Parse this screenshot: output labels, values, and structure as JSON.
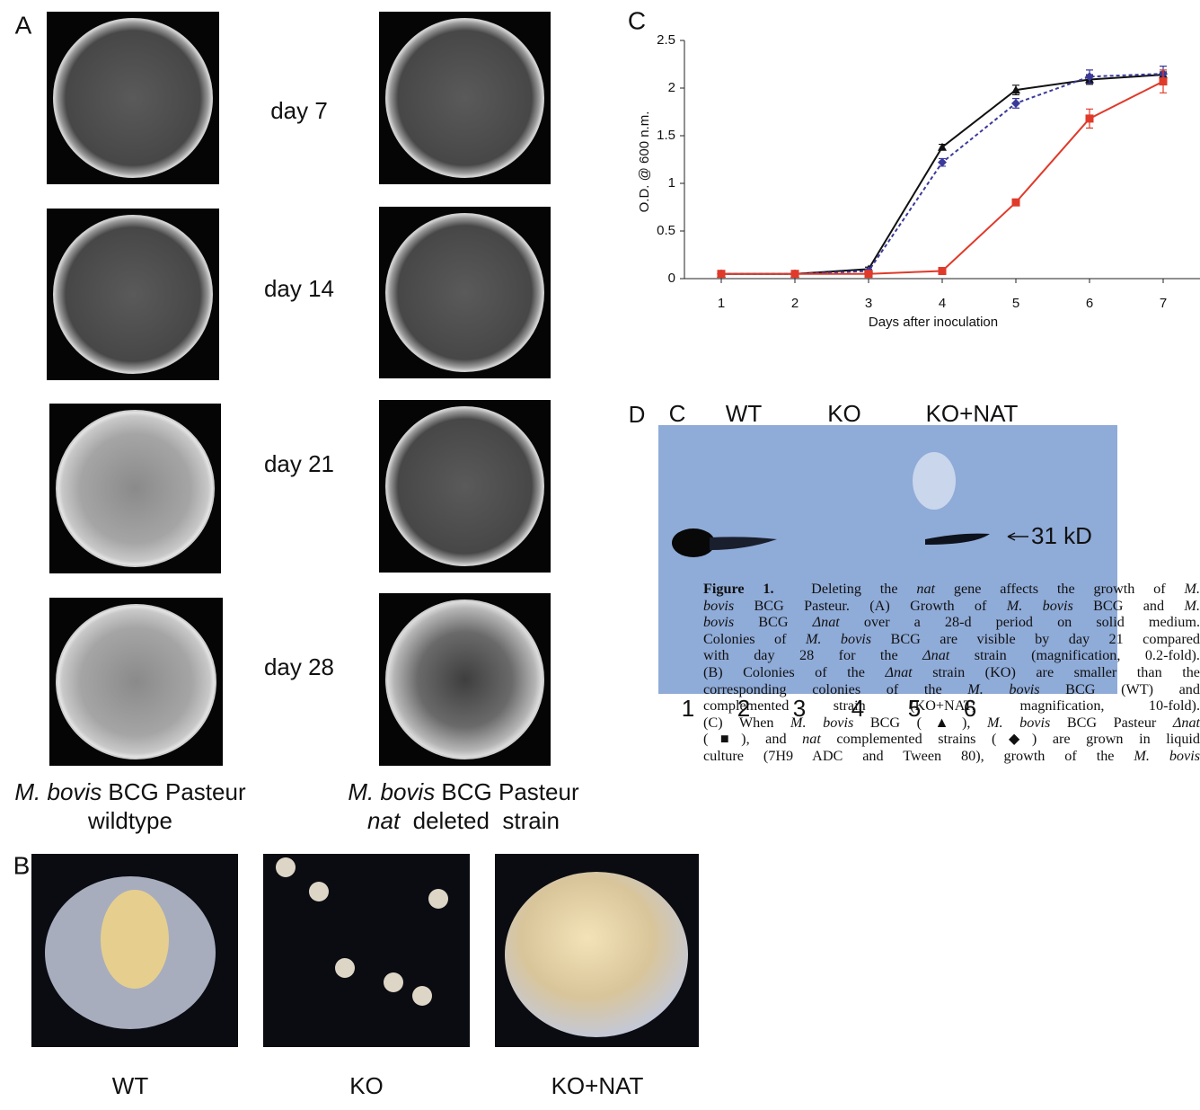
{
  "panel_a": {
    "letter": "A",
    "days": [
      "day 7",
      "day 14",
      "day 21",
      "day 28"
    ],
    "left_caption": [
      [
        {
          "text": "M. bovis",
          "style": "italic"
        },
        {
          "text": " BCG Pasteur",
          "style": "normal"
        }
      ],
      [
        {
          "text": "wildtype",
          "style": "normal"
        }
      ]
    ],
    "right_caption": [
      [
        {
          "text": "M. bovis",
          "style": "italic"
        },
        {
          "text": " BCG Pasteur",
          "style": "normal"
        }
      ],
      [
        {
          "text": "nat",
          "style": "italic"
        },
        {
          "text": "  deleted  strain",
          "style": "normal"
        }
      ]
    ]
  },
  "panel_b": {
    "letter": "B",
    "labels": [
      "WT",
      "KO",
      "KO+NAT"
    ]
  },
  "chart_data": {
    "type": "line",
    "letter": "C",
    "x_label": "Days after inoculation",
    "y_label": "O.D. @ 600 n.m.",
    "x": [
      1,
      2,
      3,
      4,
      5,
      6,
      7
    ],
    "xlim": [
      0.5,
      7.5
    ],
    "xticks": [
      1,
      2,
      3,
      4,
      5,
      6,
      7
    ],
    "ylim": [
      0,
      2.5
    ],
    "yticks": [
      0,
      0.5,
      1,
      1.5,
      2,
      2.5
    ],
    "series": [
      {
        "color": "#111111",
        "marker": "triangle",
        "dash": false,
        "values": [
          0.05,
          0.05,
          0.1,
          1.38,
          1.98,
          2.09,
          2.14
        ],
        "errors": [
          0.02,
          0.02,
          0.02,
          0.03,
          0.05,
          0.05,
          0.03
        ]
      },
      {
        "color": "#3a3a9a",
        "marker": "diamond",
        "dash": true,
        "values": [
          0.05,
          0.05,
          0.08,
          1.22,
          1.84,
          2.12,
          2.15
        ],
        "errors": [
          0.02,
          0.02,
          0.02,
          0.04,
          0.05,
          0.07,
          0.08
        ]
      },
      {
        "color": "#e03a2a",
        "marker": "square",
        "dash": false,
        "values": [
          0.05,
          0.05,
          0.05,
          0.08,
          0.8,
          1.68,
          2.07
        ],
        "errors": [
          0.03,
          0.02,
          0.02,
          0.02,
          0.03,
          0.1,
          0.12
        ]
      }
    ]
  },
  "panel_d": {
    "letter": "D",
    "lane_groups": [
      "C",
      "WT",
      "KO",
      "KO+NAT"
    ],
    "lanes": [
      "1",
      "2",
      "3",
      "4",
      "5",
      "6"
    ],
    "marker": "31 kD"
  },
  "caption": {
    "lines": [
      [
        {
          "text": "Figure 1.",
          "style": "bold"
        },
        {
          "text": "  Deleting the ",
          "style": "normal"
        },
        {
          "text": "nat",
          "style": "italic"
        },
        {
          "text": " gene affects the growth of ",
          "style": "normal"
        },
        {
          "text": "M.",
          "style": "italic"
        }
      ],
      [
        {
          "text": "bovis",
          "style": "italic"
        },
        {
          "text": " BCG Pasteur. (A) Growth of ",
          "style": "normal"
        },
        {
          "text": "M. bovis",
          "style": "italic"
        },
        {
          "text": " BCG and ",
          "style": "normal"
        },
        {
          "text": "M.",
          "style": "italic"
        }
      ],
      [
        {
          "text": "bovis",
          "style": "italic"
        },
        {
          "text": " BCG ",
          "style": "normal"
        },
        {
          "text": "Δnat",
          "style": "italic"
        },
        {
          "text": " over a 28-d period on solid medium.",
          "style": "normal"
        }
      ],
      [
        {
          "text": "Colonies of ",
          "style": "normal"
        },
        {
          "text": "M. bovis",
          "style": "italic"
        },
        {
          "text": " BCG are visible by day 21 compared",
          "style": "normal"
        }
      ],
      [
        {
          "text": "with day 28 for the ",
          "style": "normal"
        },
        {
          "text": "Δnat",
          "style": "italic"
        },
        {
          "text": " strain (magnification, 0.2-fold).",
          "style": "normal"
        }
      ],
      [
        {
          "text": "(B) Colonies of the ",
          "style": "normal"
        },
        {
          "text": "Δnat",
          "style": "italic"
        },
        {
          "text": " strain (KO) are smaller than the",
          "style": "normal"
        }
      ],
      [
        {
          "text": "corresponding colonies of the ",
          "style": "normal"
        },
        {
          "text": "M. bovis",
          "style": "italic"
        },
        {
          "text": " BCG (WT) and",
          "style": "normal"
        }
      ],
      [
        {
          "text": "complemented strain (KO+NAT; magnification, 10-fold).",
          "style": "normal"
        }
      ],
      [
        {
          "text": "(C) When ",
          "style": "normal"
        },
        {
          "text": "M. bovis",
          "style": "italic"
        },
        {
          "text": " BCG (▲), ",
          "style": "normal"
        },
        {
          "text": "M. bovis",
          "style": "italic"
        },
        {
          "text": " BCG Pasteur ",
          "style": "normal"
        },
        {
          "text": "Δnat",
          "style": "italic"
        }
      ],
      [
        {
          "text": "(■), and ",
          "style": "normal"
        },
        {
          "text": "nat",
          "style": "italic"
        },
        {
          "text": " complemented strains (◆) are grown in liquid",
          "style": "normal"
        }
      ],
      [
        {
          "text": "culture (7H9 ADC and Tween 80), growth of the ",
          "style": "normal"
        },
        {
          "text": "M. bovis",
          "style": "italic"
        }
      ]
    ]
  }
}
